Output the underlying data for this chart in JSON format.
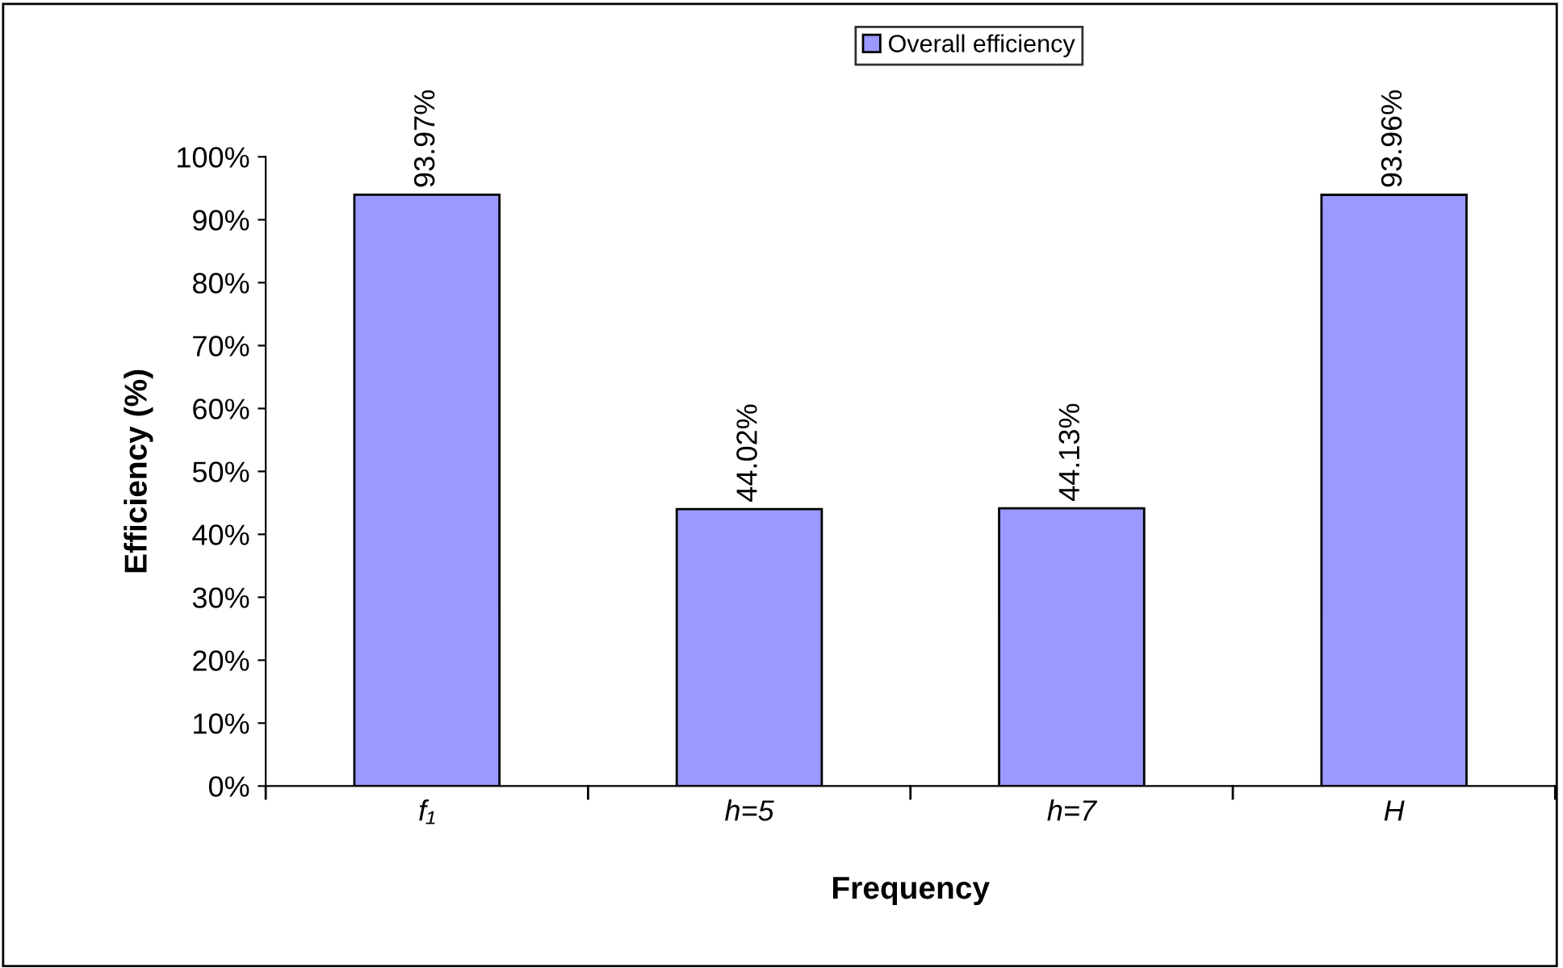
{
  "chart_data": {
    "type": "bar",
    "xlabel": "Frequency",
    "ylabel": "Efficiency (%)",
    "categories": [
      "f₁",
      "h=5",
      "h=7",
      "H"
    ],
    "series": [
      {
        "name": "Overall efficiency",
        "color": "#9999ff",
        "values": [
          93.97,
          44.02,
          44.13,
          93.96
        ],
        "value_labels": [
          "93.97%",
          "44.02%",
          "44.13%",
          "93.96%"
        ]
      }
    ],
    "ylim": [
      0,
      100
    ],
    "yticks": [
      {
        "value": 0,
        "label": "0%"
      },
      {
        "value": 10,
        "label": "10%"
      },
      {
        "value": 20,
        "label": "20%"
      },
      {
        "value": 30,
        "label": "30%"
      },
      {
        "value": 40,
        "label": "40%"
      },
      {
        "value": 50,
        "label": "50%"
      },
      {
        "value": 60,
        "label": "60%"
      },
      {
        "value": 70,
        "label": "70%"
      },
      {
        "value": 80,
        "label": "80%"
      },
      {
        "value": 90,
        "label": "90%"
      },
      {
        "value": 100,
        "label": "100%"
      }
    ],
    "grid": false,
    "legend": "top"
  }
}
